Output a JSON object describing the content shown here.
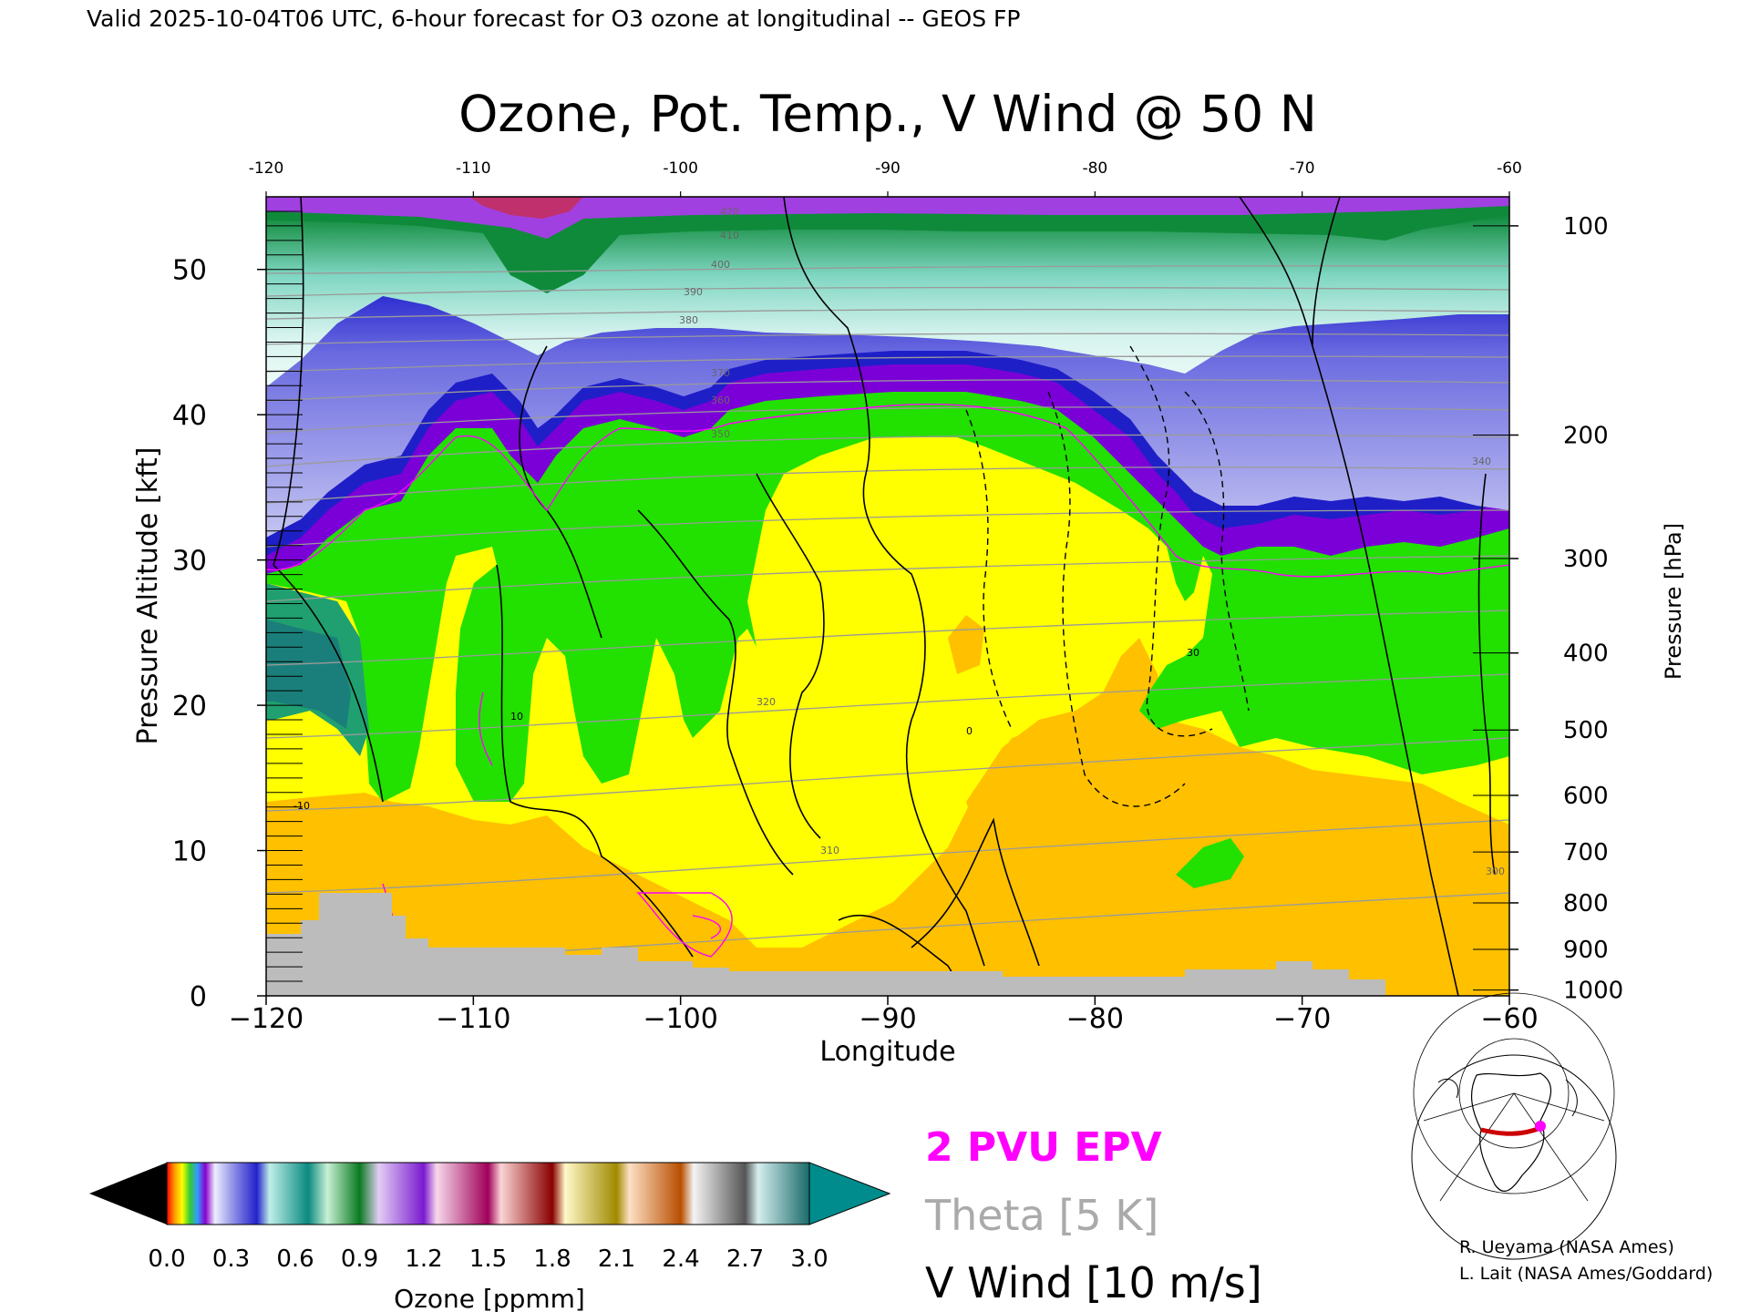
{
  "header": {
    "valid_line": "Valid 2025-10-04T06 UTC, 6-hour forecast for O3 ozone at longitudinal -- GEOS FP"
  },
  "chart_data": {
    "type": "heatmap",
    "title": "Ozone, Pot. Temp., V Wind @ 50 N",
    "xlabel": "Longitude",
    "ylabel": "Pressure Altitude [kft]",
    "y2label": "Pressure [hPa]",
    "xlim": [
      -120,
      -60
    ],
    "ylim": [
      0,
      55
    ],
    "x_ticks": [
      -120,
      -110,
      -100,
      -90,
      -80,
      -70,
      -60
    ],
    "x_tick_labels": [
      "−120",
      "−110",
      "−100",
      "−90",
      "−80",
      "−70",
      "−60"
    ],
    "top_tick_labels": [
      "-120",
      "-110",
      "-100",
      "-90",
      "-80",
      "-70",
      "-60"
    ],
    "y_ticks": [
      0,
      10,
      20,
      30,
      40,
      50
    ],
    "y2_ticks": [
      {
        "label": "100",
        "kft": 53.0
      },
      {
        "label": "200",
        "kft": 38.6
      },
      {
        "label": "300",
        "kft": 30.1
      },
      {
        "label": "400",
        "kft": 23.6
      },
      {
        "label": "500",
        "kft": 18.3
      },
      {
        "label": "600",
        "kft": 13.8
      },
      {
        "label": "700",
        "kft": 9.9
      },
      {
        "label": "800",
        "kft": 6.4
      },
      {
        "label": "900",
        "kft": 3.2
      },
      {
        "label": "1000",
        "kft": 0.4
      }
    ],
    "colorbar": {
      "label": "Ozone [ppmm]",
      "min": 0.0,
      "max": 3.0,
      "tick_labels": [
        "0.0",
        "0.3",
        "0.6",
        "0.9",
        "1.2",
        "1.5",
        "1.8",
        "2.1",
        "2.4",
        "2.7",
        "3.0"
      ],
      "below_color": "#000000",
      "above_color": "#008c8c"
    },
    "ozone_bands_ppmm": [
      {
        "range": [
          0.0,
          0.1
        ],
        "color": "#ffd000"
      },
      {
        "range": [
          0.1,
          0.2
        ],
        "color": "#ffff00"
      },
      {
        "range": [
          0.2,
          0.3
        ],
        "color": "#22e000"
      },
      {
        "range": [
          0.3,
          0.4
        ],
        "color": "#20b050"
      },
      {
        "range": [
          0.4,
          0.5
        ],
        "color": "#7b00d8"
      },
      {
        "range": [
          0.5,
          0.6
        ],
        "color": "#1f1fc8"
      },
      {
        "range": [
          0.6,
          0.7
        ],
        "color": "#a8a8ec"
      },
      {
        "range": [
          0.7,
          0.9
        ],
        "color": "#d8f4ee"
      },
      {
        "range": [
          0.9,
          1.2
        ],
        "color": "#0f8a3a"
      },
      {
        "range": [
          1.2,
          1.5
        ],
        "color": "#a040e0"
      },
      {
        "range": [
          1.5,
          1.8
        ],
        "color": "#c0306c"
      }
    ],
    "contours": [
      {
        "name": "2 PVU EPV",
        "color": "#ff00ff"
      },
      {
        "name": "Theta [5 K]",
        "color": "#aaaaaa"
      },
      {
        "name": "V Wind [10 m/s]",
        "color": "#000000"
      }
    ],
    "theta_line_labels": [
      "420",
      "410",
      "400",
      "390",
      "380",
      "370",
      "360",
      "350",
      "340",
      "320",
      "310",
      "300"
    ],
    "wind_line_labels": [
      "0",
      "10",
      "-10",
      "30"
    ],
    "grid": false
  },
  "legend": {
    "epv": "2 PVU EPV",
    "theta": "Theta [5 K]",
    "wind": "V Wind [10 m/s]"
  },
  "credits": {
    "line1": "R. Ueyama (NASA Ames)",
    "line2": "L. Lait (NASA Ames/Goddard)"
  }
}
